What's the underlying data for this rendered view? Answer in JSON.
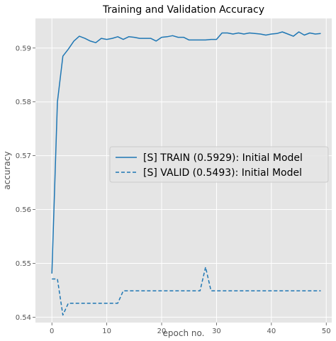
{
  "chart_data": {
    "type": "line",
    "title": "Training and Validation Accuracy",
    "xlabel": "epoch no.",
    "ylabel": "accuracy",
    "xlim": [
      -3,
      51
    ],
    "ylim": [
      0.539,
      0.5955
    ],
    "xticks": [
      0,
      10,
      20,
      30,
      40,
      50
    ],
    "yticks": [
      0.54,
      0.55,
      0.56,
      0.57,
      0.58,
      0.59
    ],
    "grid": true,
    "legend_position": "center-right",
    "background_color": "#e5e5e5",
    "series_color": "#1f77b4",
    "x": [
      0,
      1,
      2,
      3,
      4,
      5,
      6,
      7,
      8,
      9,
      10,
      11,
      12,
      13,
      14,
      15,
      16,
      17,
      18,
      19,
      20,
      21,
      22,
      23,
      24,
      25,
      26,
      27,
      28,
      29,
      30,
      31,
      32,
      33,
      34,
      35,
      36,
      37,
      38,
      39,
      40,
      41,
      42,
      43,
      44,
      45,
      46,
      47,
      48,
      49
    ],
    "series": [
      {
        "name": "[S] TRAIN (0.5929): Initial Model",
        "style": "solid",
        "values": [
          0.5481,
          0.58,
          0.5885,
          0.5898,
          0.5913,
          0.5922,
          0.5918,
          0.5913,
          0.591,
          0.5918,
          0.5916,
          0.5918,
          0.5921,
          0.5916,
          0.5921,
          0.592,
          0.5918,
          0.5918,
          0.5918,
          0.5913,
          0.592,
          0.5921,
          0.5923,
          0.592,
          0.592,
          0.5915,
          0.5915,
          0.5915,
          0.5915,
          0.5916,
          0.5916,
          0.5928,
          0.5928,
          0.5926,
          0.5928,
          0.5926,
          0.5928,
          0.5927,
          0.5926,
          0.5924,
          0.5926,
          0.5927,
          0.593,
          0.5926,
          0.5922,
          0.593,
          0.5924,
          0.5928,
          0.5926,
          0.5927
        ]
      },
      {
        "name": "[S] VALID (0.5493): Initial Model",
        "style": "dashed",
        "values": [
          0.5471,
          0.5471,
          0.5404,
          0.5426,
          0.5426,
          0.5426,
          0.5426,
          0.5426,
          0.5426,
          0.5426,
          0.5426,
          0.5426,
          0.5426,
          0.5449,
          0.5449,
          0.5449,
          0.5449,
          0.5449,
          0.5449,
          0.5449,
          0.5449,
          0.5449,
          0.5449,
          0.5449,
          0.5449,
          0.5449,
          0.5449,
          0.5449,
          0.5493,
          0.5449,
          0.5449,
          0.5449,
          0.5449,
          0.5449,
          0.5449,
          0.5449,
          0.5449,
          0.5449,
          0.5449,
          0.5449,
          0.5449,
          0.5449,
          0.5449,
          0.5449,
          0.5449,
          0.5449,
          0.5449,
          0.5449,
          0.5449,
          0.5449
        ]
      }
    ]
  }
}
